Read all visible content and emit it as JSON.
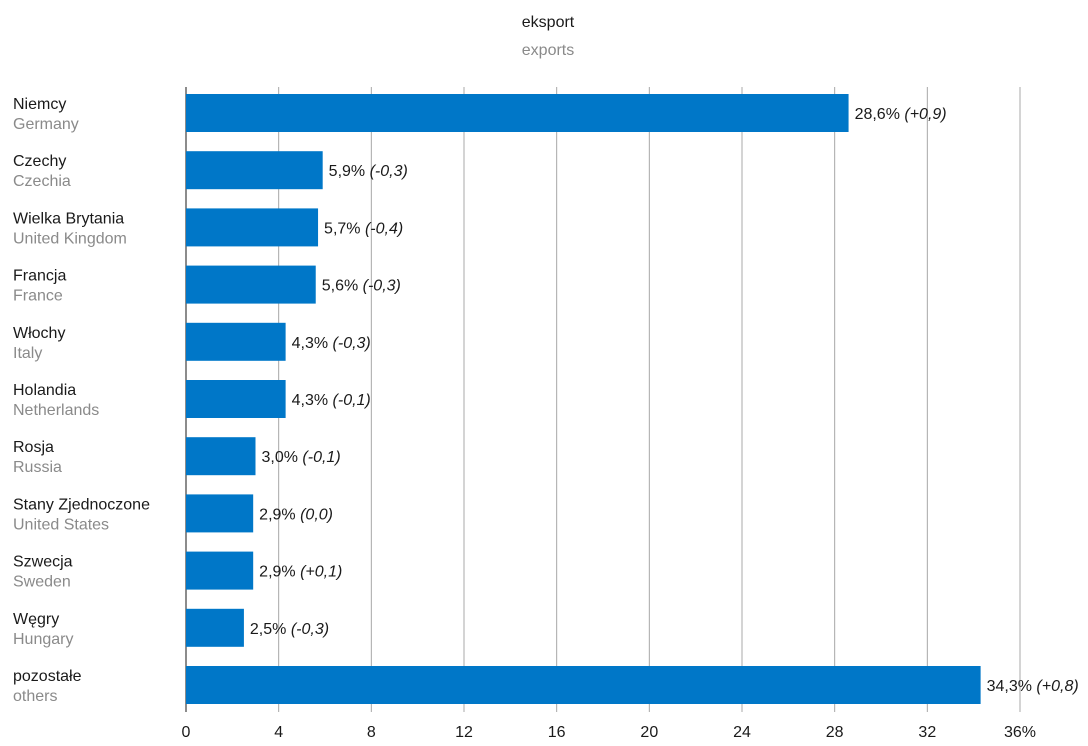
{
  "chart_data": {
    "type": "bar",
    "orientation": "horizontal",
    "title": "eksport",
    "subtitle": "exports",
    "bar_color": "#0077c8",
    "xlim": [
      0,
      36
    ],
    "xticks": [
      0,
      4,
      8,
      12,
      16,
      20,
      24,
      28,
      32,
      36
    ],
    "xtick_labels": [
      "0",
      "4",
      "8",
      "12",
      "16",
      "20",
      "24",
      "28",
      "32",
      "36%"
    ],
    "grid": true,
    "categories": [
      {
        "pl": "Niemcy",
        "en": "Germany"
      },
      {
        "pl": "Czechy",
        "en": "Czechia"
      },
      {
        "pl": "Wielka Brytania",
        "en": "United Kingdom"
      },
      {
        "pl": "Francja",
        "en": "France"
      },
      {
        "pl": "Włochy",
        "en": "Italy"
      },
      {
        "pl": "Holandia",
        "en": "Netherlands"
      },
      {
        "pl": "Rosja",
        "en": "Russia"
      },
      {
        "pl": "Stany Zjednoczone",
        "en": "United States"
      },
      {
        "pl": "Szwecja",
        "en": "Sweden"
      },
      {
        "pl": "Węgry",
        "en": "Hungary"
      },
      {
        "pl": "pozostałe",
        "en": "others"
      }
    ],
    "values": [
      28.6,
      5.9,
      5.7,
      5.6,
      4.3,
      4.3,
      3.0,
      2.9,
      2.9,
      2.5,
      34.3
    ],
    "value_labels": [
      "28,6%",
      "5,9%",
      "5,7%",
      "5,6%",
      "4,3%",
      "4,3%",
      "3,0%",
      "2,9%",
      "2,9%",
      "2,5%",
      "34,3%"
    ],
    "change_labels": [
      "(+0,9)",
      "(-0,3)",
      "(-0,4)",
      "(-0,3)",
      "(-0,3)",
      "(-0,1)",
      "(-0,1)",
      "(0,0)",
      "(+0,1)",
      "(-0,3)",
      "(+0,8)"
    ]
  }
}
